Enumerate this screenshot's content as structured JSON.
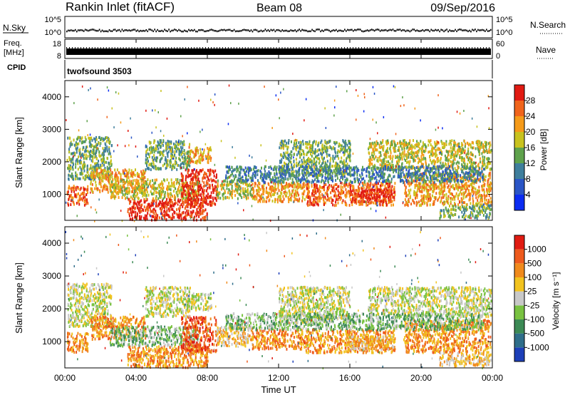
{
  "header": {
    "station": "Rankin Inlet (fitACF)",
    "beam": "Beam 08",
    "date": "09/Sep/2016"
  },
  "top_panels": {
    "nsky_label": "N.Sky",
    "nsky_ticks": [
      "10^5",
      "10^0"
    ],
    "nsearch_label": "N.Search",
    "nsearch_ticks": [
      "10^5",
      "10^0"
    ],
    "freq_label_1": "Freq.",
    "freq_label_2": "[MHz]",
    "freq_ticks": [
      "18",
      "8"
    ],
    "nave_label": "Nave",
    "nave_ticks": [
      "60",
      "0"
    ],
    "cpid_label": "CPID",
    "cpid_value": "twofsound 3503"
  },
  "chart_data": [
    {
      "type": "heatmap",
      "name": "power",
      "ylabel": "Slant Range [km]",
      "ylim": [
        200,
        4500
      ],
      "yticks": [
        "1000",
        "2000",
        "3000",
        "4000"
      ],
      "xlabel": "Time UT",
      "xlim_hours": [
        0,
        24
      ],
      "xticks": [
        "00:00",
        "04:00",
        "08:00",
        "12:00",
        "16:00",
        "20:00",
        "00:00"
      ],
      "colorbar_label": "Power [dB]",
      "colorbar_ticks": [
        "28",
        "24",
        "20",
        "16",
        "12",
        "8",
        "4"
      ],
      "colors": [
        "#0b2cf2",
        "#2a55c6",
        "#3e7e9c",
        "#5fa24c",
        "#c8c21e",
        "#f59a19",
        "#f0641b",
        "#e11a12"
      ]
    },
    {
      "type": "heatmap",
      "name": "velocity",
      "ylabel": "Slant Range [km]",
      "ylim": [
        200,
        4500
      ],
      "yticks": [
        "1000",
        "2000",
        "3000",
        "4000"
      ],
      "xlabel": "Time UT",
      "xlim_hours": [
        0,
        24
      ],
      "xticks": [
        "00:00",
        "04:00",
        "08:00",
        "12:00",
        "16:00",
        "20:00",
        "00:00"
      ],
      "colorbar_label": "Velocity [m s⁻¹]",
      "colorbar_ticks": [
        "1000",
        "500",
        "100",
        "25",
        "-25",
        "-100",
        "-500",
        "-1000"
      ],
      "colors": [
        "#1d3fb8",
        "#2f6e8a",
        "#3c8a55",
        "#79c241",
        "#c8c8c8",
        "#f2c31f",
        "#f08a1c",
        "#ee5a1d",
        "#e01b12"
      ]
    }
  ]
}
